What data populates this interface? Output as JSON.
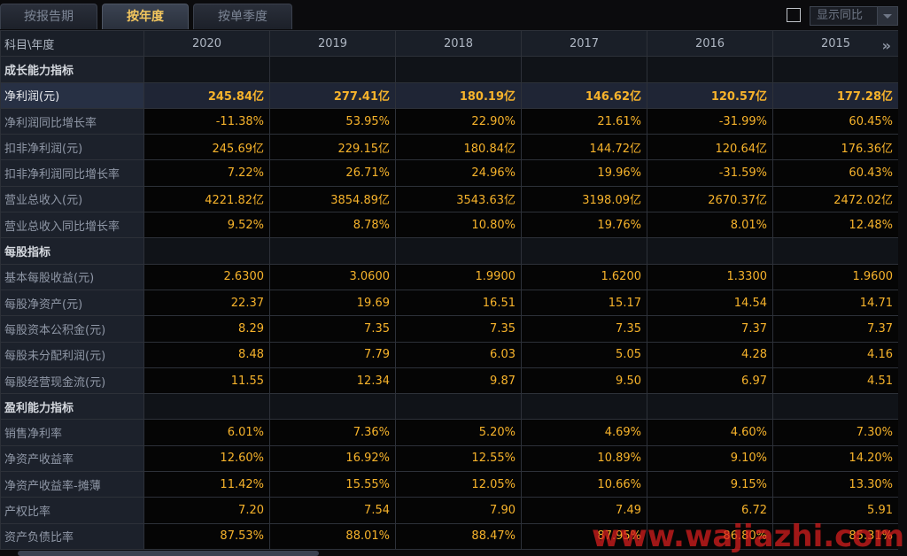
{
  "tabs": [
    {
      "label": "按报告期",
      "active": false
    },
    {
      "label": "按年度",
      "active": true
    },
    {
      "label": "按单季度",
      "active": false
    }
  ],
  "controls": {
    "yoy_checkbox_checked": false,
    "yoy_select_label": "显示同比"
  },
  "table": {
    "corner": "科目\\年度",
    "years": [
      "2020",
      "2019",
      "2018",
      "2017",
      "2016",
      "2015"
    ],
    "rows": [
      {
        "type": "section",
        "label": "成长能力指标",
        "values": []
      },
      {
        "type": "highlight",
        "label": "净利润(元)",
        "values": [
          "245.84亿",
          "277.41亿",
          "180.19亿",
          "146.62亿",
          "120.57亿",
          "177.28亿"
        ]
      },
      {
        "type": "row",
        "label": "净利润同比增长率",
        "values": [
          "-11.38%",
          "53.95%",
          "22.90%",
          "21.61%",
          "-31.99%",
          "60.45%"
        ]
      },
      {
        "type": "row",
        "label": "扣非净利润(元)",
        "values": [
          "245.69亿",
          "229.15亿",
          "180.84亿",
          "144.72亿",
          "120.64亿",
          "176.36亿"
        ]
      },
      {
        "type": "row",
        "label": "扣非净利润同比增长率",
        "values": [
          "7.22%",
          "26.71%",
          "24.96%",
          "19.96%",
          "-31.59%",
          "60.43%"
        ]
      },
      {
        "type": "row",
        "label": "营业总收入(元)",
        "values": [
          "4221.82亿",
          "3854.89亿",
          "3543.63亿",
          "3198.09亿",
          "2670.37亿",
          "2472.02亿"
        ]
      },
      {
        "type": "row",
        "label": "营业总收入同比增长率",
        "values": [
          "9.52%",
          "8.78%",
          "10.80%",
          "19.76%",
          "8.01%",
          "12.48%"
        ]
      },
      {
        "type": "section",
        "label": "每股指标",
        "values": []
      },
      {
        "type": "row",
        "label": "基本每股收益(元)",
        "values": [
          "2.6300",
          "3.0600",
          "1.9900",
          "1.6200",
          "1.3300",
          "1.9600"
        ]
      },
      {
        "type": "row",
        "label": "每股净资产(元)",
        "values": [
          "22.37",
          "19.69",
          "16.51",
          "15.17",
          "14.54",
          "14.71"
        ]
      },
      {
        "type": "row",
        "label": "每股资本公积金(元)",
        "values": [
          "8.29",
          "7.35",
          "7.35",
          "7.35",
          "7.37",
          "7.37"
        ]
      },
      {
        "type": "row",
        "label": "每股未分配利润(元)",
        "values": [
          "8.48",
          "7.79",
          "6.03",
          "5.05",
          "4.28",
          "4.16"
        ]
      },
      {
        "type": "row",
        "label": "每股经营现金流(元)",
        "values": [
          "11.55",
          "12.34",
          "9.87",
          "9.50",
          "6.97",
          "4.51"
        ]
      },
      {
        "type": "section",
        "label": "盈利能力指标",
        "values": []
      },
      {
        "type": "row",
        "label": "销售净利率",
        "values": [
          "6.01%",
          "7.36%",
          "5.20%",
          "4.69%",
          "4.60%",
          "7.30%"
        ]
      },
      {
        "type": "row",
        "label": "净资产收益率",
        "values": [
          "12.60%",
          "16.92%",
          "12.55%",
          "10.89%",
          "9.10%",
          "14.20%"
        ]
      },
      {
        "type": "row",
        "label": "净资产收益率-摊薄",
        "values": [
          "11.42%",
          "15.55%",
          "12.05%",
          "10.66%",
          "9.15%",
          "13.30%"
        ]
      },
      {
        "type": "row",
        "label": "产权比率",
        "values": [
          "7.20",
          "7.54",
          "7.90",
          "7.49",
          "6.72",
          "5.91"
        ]
      },
      {
        "type": "row",
        "label": "资产负债比率",
        "values": [
          "87.53%",
          "88.01%",
          "88.47%",
          "87.95%",
          "86.80%",
          "85.31%"
        ]
      }
    ]
  },
  "watermark": "www.wajiazhi.com",
  "colors": {
    "value": "#f7b32b",
    "active_tab": "#f4c75e",
    "watermark": "#dc1e1e"
  }
}
